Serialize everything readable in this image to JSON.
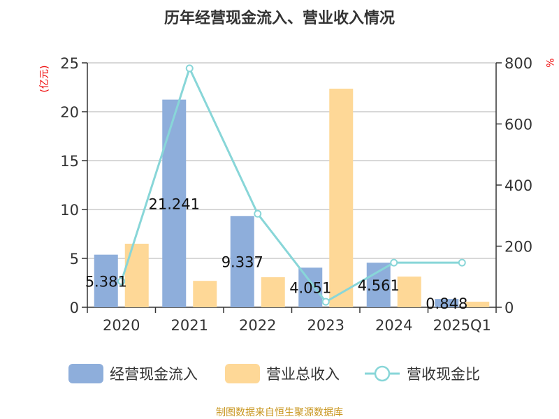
{
  "chart_data": {
    "type": "bar",
    "title": "历年经营现金流入、营业收入情况",
    "ylabel": "(亿元)",
    "y2label": "%",
    "ylim": [
      0,
      25
    ],
    "y2lim": [
      0,
      800
    ],
    "yticks": [
      "0",
      "5",
      "10",
      "15",
      "20",
      "25"
    ],
    "y2ticks": [
      "0",
      "200",
      "400",
      "600",
      "800"
    ],
    "categories": [
      "2020",
      "2021",
      "2022",
      "2023",
      "2024",
      "2025Q1"
    ],
    "series": [
      {
        "name": "经营现金流入",
        "type": "bar",
        "color": "#8eaedb",
        "values": [
          5.381,
          21.241,
          9.337,
          4.051,
          4.561,
          0.848
        ],
        "labels": [
          "5.381",
          "21.241",
          "9.337",
          "4.051",
          "4.561",
          "0.848"
        ]
      },
      {
        "name": "营业总收入",
        "type": "bar",
        "color": "#fed897",
        "values": [
          6.5,
          2.7,
          3.07,
          22.36,
          3.14,
          0.57
        ]
      },
      {
        "name": "营收现金比",
        "type": "line",
        "axis": "right",
        "color": "#88d6d8",
        "values": [
          85,
          782,
          306,
          18,
          146,
          146
        ]
      }
    ],
    "legend": "bottom",
    "source": "制图数据来自恒生聚源数据库"
  }
}
